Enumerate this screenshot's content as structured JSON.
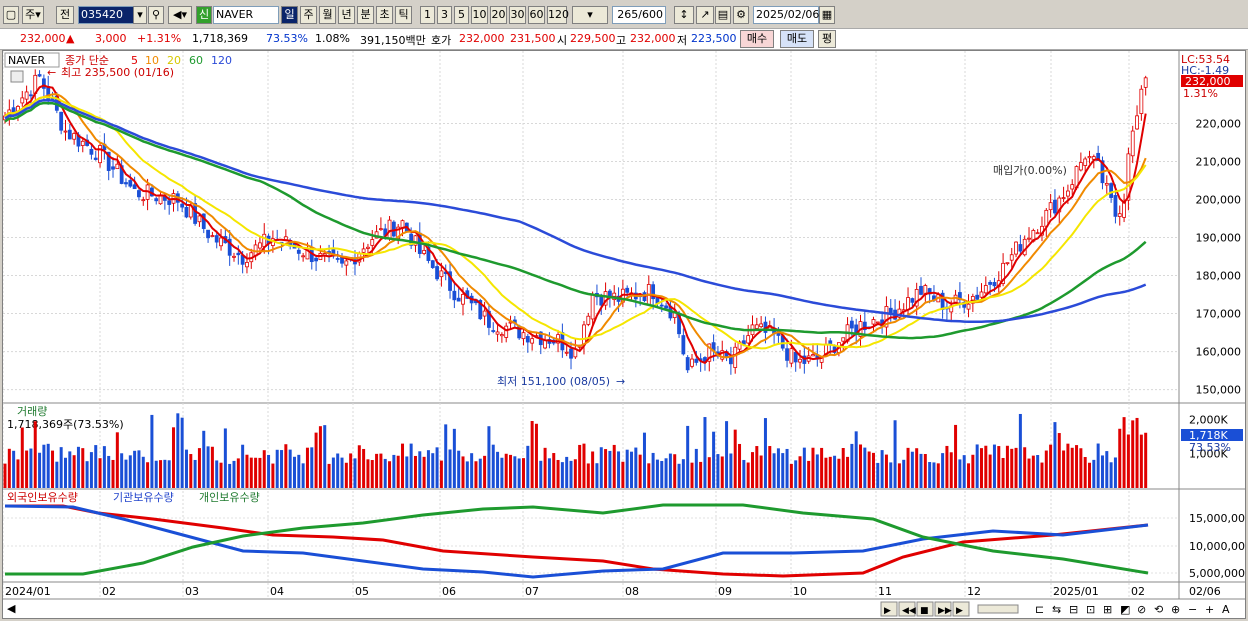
{
  "toolbar": {
    "mode": "주",
    "prev": "전",
    "code": "035420",
    "stock_badge": "신",
    "stock_name": "NAVER",
    "periods": [
      "일",
      "주",
      "월",
      "년",
      "분",
      "초",
      "틱"
    ],
    "intervals": [
      "1",
      "3",
      "5",
      "10",
      "20",
      "30",
      "60",
      "120"
    ],
    "count": "265",
    "count_max": "/600",
    "date": "2025/02/06"
  },
  "info": {
    "price": "232,000",
    "change": "3,000",
    "change_pct": "+1.31%",
    "volume": "1,718,369",
    "vol_ratio": "73.53%",
    "turnover": "1.08%",
    "amount": "391,150백만",
    "quote_label": "호가",
    "ask": "232,000",
    "bid": "231,500",
    "open_label": "시",
    "open": "229,500",
    "high_label": "고",
    "high": "232,000",
    "low_label": "저",
    "low": "223,500",
    "buy_label": "매수",
    "sell_label": "매도",
    "eval_label": "평"
  },
  "price_panel": {
    "name": "NAVER",
    "ma_label": "종가 단순",
    "ma_periods": [
      "5",
      "10",
      "20",
      "60",
      "120"
    ],
    "high_note": "최고 235,500 (01/16)",
    "low_note": "최저 151,100 (08/05)",
    "avg_note": "매입가(0.00%)",
    "lc": "LC:53.54",
    "hc": "HC:-1.49",
    "last": "232,000",
    "last_pct": "1.31%",
    "y_ticks": [
      "220,000",
      "210,000",
      "200,000",
      "190,000",
      "180,000",
      "170,000",
      "160,000",
      "150,000"
    ]
  },
  "volume_panel": {
    "title": "거래량",
    "value": "1,718,369주(73.53%)",
    "y_ticks": [
      "2,000K",
      "1,000K"
    ],
    "last": "1,718K",
    "last_pct": "73.53%"
  },
  "holdings_panel": {
    "foreign": "외국인보유수량",
    "inst": "기관보유수량",
    "retail": "개인보유수량",
    "y_ticks": [
      "15,000,000",
      "10,000,000",
      "5,000,000"
    ]
  },
  "x_labels": [
    "2024/01",
    "02",
    "03",
    "04",
    "05",
    "06",
    "07",
    "08",
    "09",
    "10",
    "11",
    "12",
    "2025/01",
    "02",
    "02/06"
  ],
  "colors": {
    "up": "#e00000",
    "down": "#1a4fd6",
    "ma5": "#e00000",
    "ma10": "#f08a00",
    "ma20": "#f5e600",
    "ma60": "#1e9a2e",
    "ma120": "#2b4bd8"
  },
  "chart_data": {
    "type": "candlestick",
    "price_range": [
      147000,
      238000
    ],
    "monthly_close": [
      {
        "x": "2024/01",
        "y": 221000
      },
      {
        "x": "02",
        "y": 200000
      },
      {
        "x": "03",
        "y": 188000
      },
      {
        "x": "04",
        "y": 183000
      },
      {
        "x": "05",
        "y": 190000
      },
      {
        "x": "06",
        "y": 168000
      },
      {
        "x": "07",
        "y": 176000
      },
      {
        "x": "08",
        "y": 160000
      },
      {
        "x": "09",
        "y": 158000
      },
      {
        "x": "10",
        "y": 172000
      },
      {
        "x": "11",
        "y": 178000
      },
      {
        "x": "12",
        "y": 205000
      },
      {
        "x": "2025/01",
        "y": 205000
      },
      {
        "x": "02",
        "y": 232000
      }
    ]
  }
}
